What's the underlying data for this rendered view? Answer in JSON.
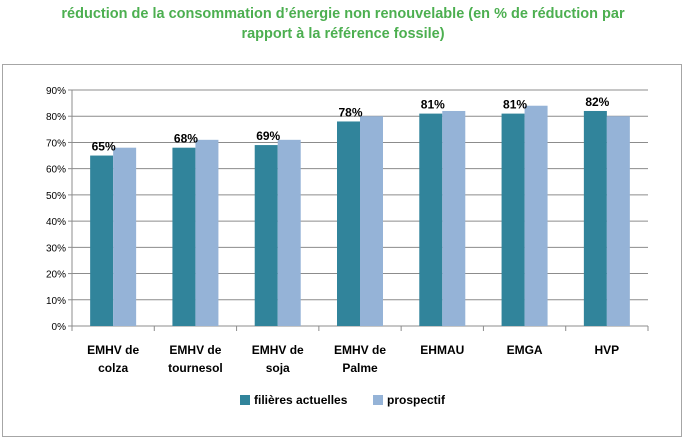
{
  "title_line1": "réduction de la consommation d’énergie non renouvelable (en % de réduction par",
  "title_line2": "rapport à la référence fossile)",
  "chart_data": {
    "type": "bar",
    "title": "réduction de la consommation d’énergie non renouvelable (en % de réduction par rapport à la référence fossile)",
    "categories": [
      [
        "EMHV de",
        "colza"
      ],
      [
        "EMHV de",
        "tournesol"
      ],
      [
        "EMHV de",
        "soja"
      ],
      [
        "EMHV de",
        "Palme"
      ],
      [
        "EHMAU"
      ],
      [
        "EMGA"
      ],
      [
        "HVP"
      ]
    ],
    "series": [
      {
        "name": "filières actuelles",
        "color": "#31849b",
        "values": [
          65,
          68,
          69,
          78,
          81,
          81,
          82
        ]
      },
      {
        "name": "prospectif",
        "color": "#95b3d7",
        "values": [
          68,
          71,
          71,
          80,
          82,
          84,
          80
        ]
      }
    ],
    "data_labels": [
      "65%",
      "68%",
      "69%",
      "78%",
      "81%",
      "81%",
      "82%"
    ],
    "yticks": [
      "0%",
      "10%",
      "20%",
      "30%",
      "40%",
      "50%",
      "60%",
      "70%",
      "80%",
      "90%"
    ],
    "ylim": [
      0,
      90
    ],
    "grid": true,
    "legend_position": "bottom"
  }
}
